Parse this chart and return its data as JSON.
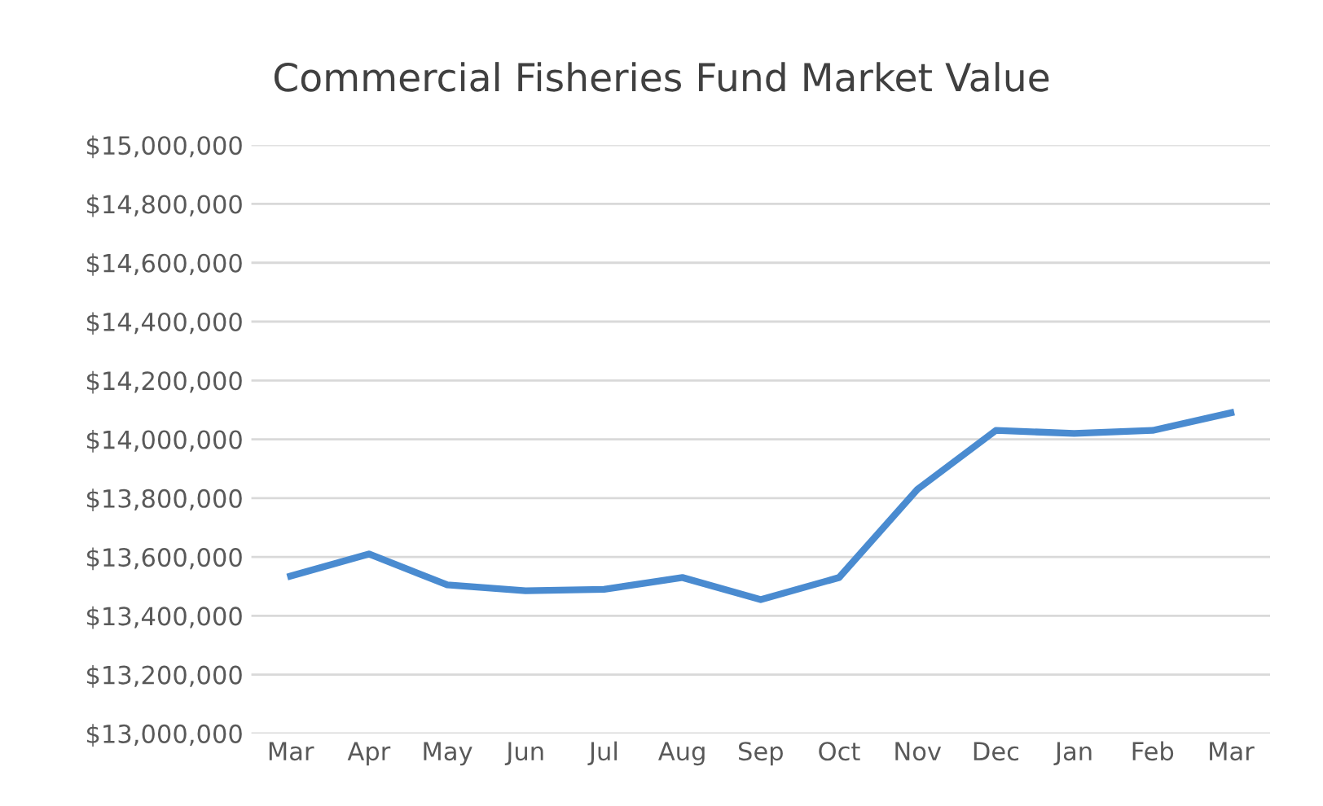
{
  "chart_data": {
    "type": "line",
    "title": "Commercial Fisheries Fund Market Value",
    "categories": [
      "Mar",
      "Apr",
      "May",
      "Jun",
      "Jul",
      "Aug",
      "Sep",
      "Oct",
      "Nov",
      "Dec",
      "Jan",
      "Feb",
      "Mar"
    ],
    "series": [
      {
        "color": "#4a8bd0",
        "values": [
          13535000,
          13610000,
          13505000,
          13485000,
          13490000,
          13530000,
          13455000,
          13530000,
          13830000,
          14030000,
          14020000,
          14030000,
          14090000
        ]
      }
    ],
    "ylim": [
      13000000,
      15000000
    ],
    "yticks": [
      {
        "value": 13000000,
        "label": "$13,000,000"
      },
      {
        "value": 13200000,
        "label": "$13,200,000"
      },
      {
        "value": 13400000,
        "label": "$13,400,000"
      },
      {
        "value": 13600000,
        "label": "$13,600,000"
      },
      {
        "value": 13800000,
        "label": "$13,800,000"
      },
      {
        "value": 14000000,
        "label": "$14,000,000"
      },
      {
        "value": 14200000,
        "label": "$14,200,000"
      },
      {
        "value": 14400000,
        "label": "$14,400,000"
      },
      {
        "value": 14600000,
        "label": "$14,600,000"
      },
      {
        "value": 14800000,
        "label": "$14,800,000"
      },
      {
        "value": 15000000,
        "label": "$15,000,000"
      }
    ],
    "grid": "y",
    "marker": "none",
    "line_style": "solid"
  }
}
